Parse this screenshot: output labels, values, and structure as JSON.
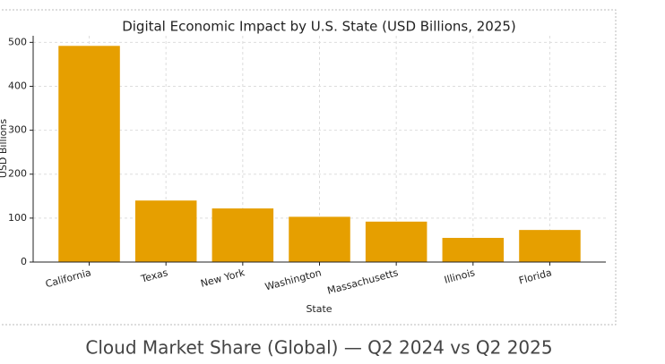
{
  "chart_data": {
    "type": "bar",
    "title": "Digital Economic Impact by U.S. State (USD Billions, 2025)",
    "xlabel": "State",
    "ylabel": "USD Billions",
    "categories": [
      "California",
      "Texas",
      "New York",
      "Washington",
      "Massachusetts",
      "Illinois",
      "Florida"
    ],
    "values": [
      492,
      140,
      122,
      103,
      92,
      55,
      73
    ],
    "color": "#e69f00",
    "ylim": [
      0,
      515
    ],
    "yticks": [
      0,
      100,
      200,
      300,
      400,
      500
    ],
    "grid": true
  },
  "next_section": {
    "title": "Cloud Market Share (Global) — Q2 2024 vs Q2 2025"
  }
}
